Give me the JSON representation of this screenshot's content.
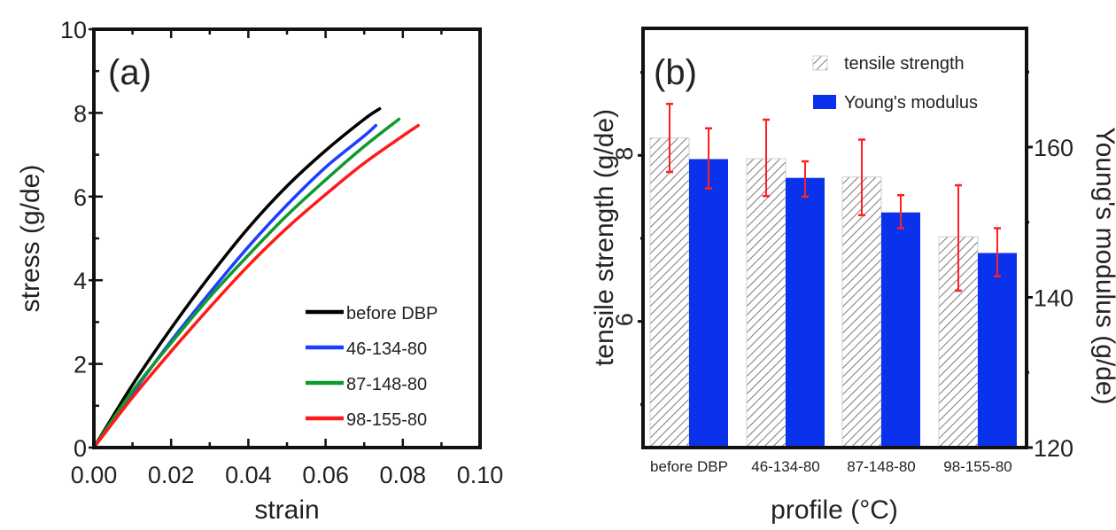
{
  "chart_data": [
    {
      "panel": "(a)",
      "type": "line",
      "title": "",
      "xlabel": "strain",
      "ylabel": "stress (g/de)",
      "xlim": [
        0.0,
        0.1
      ],
      "ylim": [
        0,
        10
      ],
      "xticks": [
        "0.00",
        "0.02",
        "0.04",
        "0.06",
        "0.08",
        "0.10"
      ],
      "yticks": [
        "0",
        "2",
        "4",
        "6",
        "8",
        "10"
      ],
      "grid": false,
      "legend_position": "bottom-right",
      "series": [
        {
          "name": "before DBP",
          "color": "#000000",
          "x": [
            0,
            0.01,
            0.02,
            0.03,
            0.04,
            0.05,
            0.06,
            0.07,
            0.074
          ],
          "y": [
            0,
            1.5,
            2.85,
            4.1,
            5.25,
            6.25,
            7.1,
            7.85,
            8.1
          ]
        },
        {
          "name": "46-134-80",
          "color": "#1a3fff",
          "x": [
            0,
            0.01,
            0.02,
            0.03,
            0.04,
            0.05,
            0.06,
            0.07,
            0.073
          ],
          "y": [
            0,
            1.3,
            2.55,
            3.7,
            4.8,
            5.8,
            6.7,
            7.45,
            7.7
          ]
        },
        {
          "name": "87-148-80",
          "color": "#109a2e",
          "x": [
            0,
            0.01,
            0.02,
            0.03,
            0.04,
            0.05,
            0.06,
            0.07,
            0.079
          ],
          "y": [
            0,
            1.35,
            2.5,
            3.6,
            4.6,
            5.55,
            6.4,
            7.2,
            7.85
          ]
        },
        {
          "name": "98-155-80",
          "color": "#ff1a1a",
          "x": [
            0,
            0.01,
            0.02,
            0.03,
            0.04,
            0.05,
            0.06,
            0.07,
            0.08,
            0.084
          ],
          "y": [
            0,
            1.2,
            2.3,
            3.35,
            4.35,
            5.25,
            6.05,
            6.8,
            7.45,
            7.7
          ]
        }
      ]
    },
    {
      "panel": "(b)",
      "type": "bar",
      "title": "",
      "xlabel": "profile (°C)",
      "ylabel": "tensile strength (g/de)",
      "y2label": "Young's modulus (g/de)",
      "categories": [
        "before DBP",
        "46-134-80",
        "87-148-80",
        "98-155-80"
      ],
      "ylim": [
        4.48,
        9.53
      ],
      "y2lim": [
        120,
        175.8
      ],
      "yticks": [
        "6",
        "8"
      ],
      "y2ticks": [
        "120",
        "140",
        "160"
      ],
      "grid": false,
      "legend_position": "top-right",
      "series": [
        {
          "name": "tensile strength",
          "axis": "left",
          "style": "hatched-gray",
          "values": [
            8.21,
            7.96,
            7.74,
            7.02
          ],
          "err_low": [
            7.8,
            7.51,
            7.28,
            6.37
          ],
          "err_high": [
            8.62,
            8.43,
            8.19,
            7.64
          ]
        },
        {
          "name": "Young's modulus",
          "axis": "right",
          "style": "solid-blue",
          "color": "#0a32ec",
          "values": [
            158.4,
            155.9,
            151.3,
            145.9
          ],
          "err_low": [
            154.5,
            153.4,
            149.2,
            142.8
          ],
          "err_high": [
            162.5,
            158.1,
            153.6,
            149.2
          ]
        }
      ],
      "error_bar_color": "#ff2020"
    }
  ]
}
